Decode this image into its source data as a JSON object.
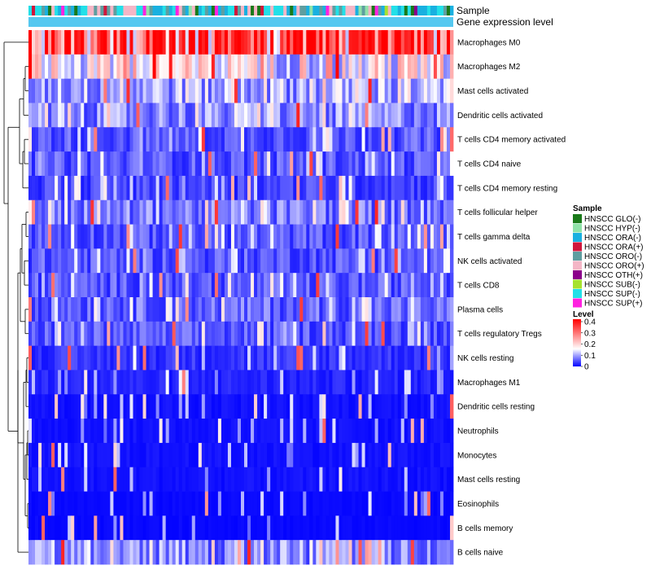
{
  "chart_data": {
    "type": "heatmap",
    "title": "",
    "rows": [
      {
        "name": "Macrophages M0",
        "level": 0.3
      },
      {
        "name": "Macrophages M2",
        "level": 0.15
      },
      {
        "name": "Mast cells activated",
        "level": 0.1
      },
      {
        "name": "Dendritic cells activated",
        "level": 0.08
      },
      {
        "name": "T cells CD4 memory activated",
        "level": 0.05
      },
      {
        "name": "T cells CD4 naive",
        "level": 0.05
      },
      {
        "name": "T cells CD4 memory resting",
        "level": 0.04
      },
      {
        "name": "T cells follicular helper",
        "level": 0.07
      },
      {
        "name": "T cells gamma delta",
        "level": 0.05
      },
      {
        "name": "NK cells activated",
        "level": 0.05
      },
      {
        "name": "T cells CD8",
        "level": 0.05
      },
      {
        "name": "Plasma cells",
        "level": 0.06
      },
      {
        "name": "T cells regulatory  Tregs",
        "level": 0.05
      },
      {
        "name": "NK cells resting",
        "level": 0.03
      },
      {
        "name": "Macrophages M1",
        "level": 0.02
      },
      {
        "name": "Dendritic cells resting",
        "level": 0.01
      },
      {
        "name": "Neutrophils",
        "level": 0.01
      },
      {
        "name": "Monocytes",
        "level": 0.01
      },
      {
        "name": "Mast cells resting",
        "level": 0.01
      },
      {
        "name": "Eosinophils",
        "level": 0.005
      },
      {
        "name": "B cells memory",
        "level": 0.005
      },
      {
        "name": "B cells naive",
        "level": 0.08
      }
    ],
    "sample_count": 130,
    "annotation_tracks": [
      "Sample",
      "Gene expression level"
    ],
    "legend_sample": {
      "title": "Sample",
      "entries": [
        {
          "label": "HNSCC GLO(-)",
          "color": "#1a7a1a"
        },
        {
          "label": "HNSCC HYP(-)",
          "color": "#8fe3a8"
        },
        {
          "label": "HNSCC ORA(-)",
          "color": "#19b0e0"
        },
        {
          "label": "HNSCC ORA(+)",
          "color": "#d0163c"
        },
        {
          "label": "HNSCC ORO(-)",
          "color": "#5f9ea0"
        },
        {
          "label": "HNSCC ORO(+)",
          "color": "#f4b6c6"
        },
        {
          "label": "HNSCC OTH(+)",
          "color": "#8b008b"
        },
        {
          "label": "HNSCC SUB(-)",
          "color": "#a6e22e"
        },
        {
          "label": "HNSCC SUP(-)",
          "color": "#22e0e8"
        },
        {
          "label": "HNSCC SUP(+)",
          "color": "#ff22e0"
        }
      ]
    },
    "legend_level": {
      "title": "Level",
      "ticks": [
        "0.4",
        "0.3",
        "0.2",
        "0.1",
        "0"
      ],
      "range": [
        0,
        0.4
      ]
    },
    "colors": {
      "low": "#0000ff",
      "mid": "#ffffff",
      "high": "#ff0000",
      "expression_track": "#55c8f0"
    }
  }
}
